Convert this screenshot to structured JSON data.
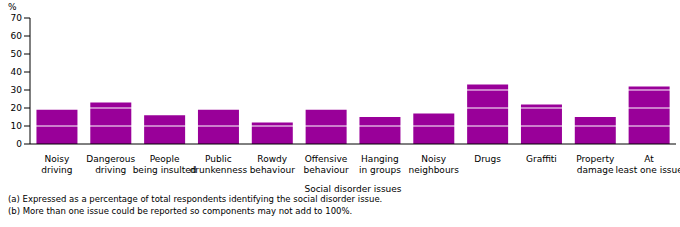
{
  "chart_data": {
    "type": "bar",
    "y_label": "%",
    "x_label": "Social disorder issues",
    "categories": [
      "Noisy driving",
      "Dangerous driving",
      "People being insulted",
      "Public drunkenness",
      "Rowdy behaviour",
      "Offensive behaviour",
      "Hanging in groups",
      "Noisy neighbours",
      "Drugs",
      "Graffiti",
      "Property damage",
      "At least one issue"
    ],
    "values": [
      19,
      23,
      16,
      19,
      12,
      19,
      15,
      17,
      33,
      22,
      15,
      32
    ],
    "color": "#990099",
    "ylim": [
      0,
      70
    ],
    "yticks": [
      0,
      10,
      20,
      30,
      40,
      50,
      60,
      70
    ],
    "grid": true,
    "notes": [
      "(a) Expressed as a percentage of total respondents identifying the social disorder issue.",
      "(b) More than one issue could be reported so components may not add to 100%."
    ]
  }
}
